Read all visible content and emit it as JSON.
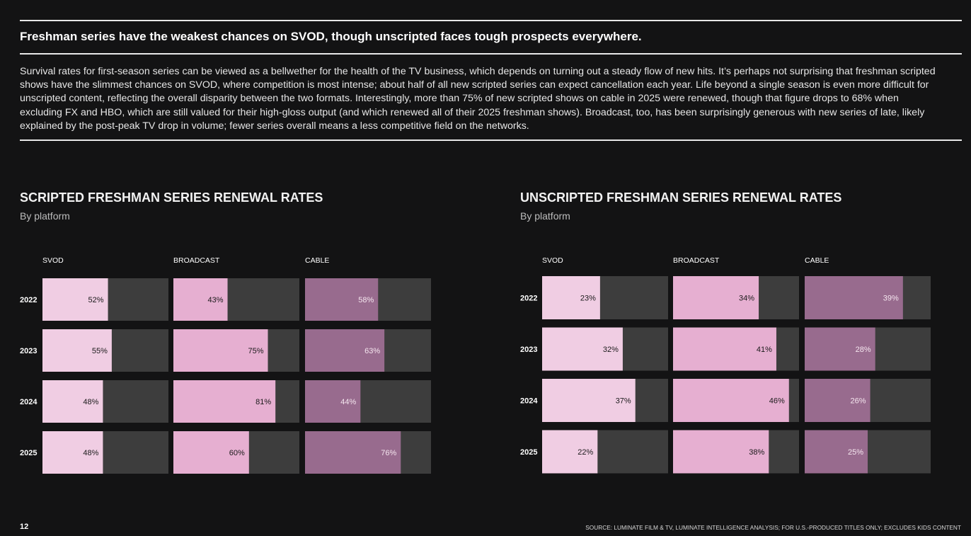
{
  "headline": "Freshman series have the weakest chances on SVOD, though unscripted faces tough prospects everywhere.",
  "intro": "Survival rates for first-season series can be viewed as a bellwether for the health of the TV business, which depends on turning out a steady flow of new hits. It’s perhaps not surprising that freshman scripted shows have the slimmest chances on SVOD, where competition is most intense; about half of all new scripted series can expect cancellation each year. Life beyond a single season is even more difficult for unscripted content, reflecting the overall disparity between the two formats. Interestingly, more than 75% of new scripted shows on cable in 2025 were renewed, though that figure drops to 68% when excluding FX and HBO, which are still valued for their high-gloss output (and which renewed all of their 2025 freshman shows). Broadcast, too, has been surprisingly generous with new series of late, likely explained by the post-peak TV drop in volume; fewer series overall means a less competitive field on the networks.",
  "page_number": "12",
  "source": "SOURCE: LUMINATE FILM & TV, LUMINATE INTELLIGENCE ANALYSIS; FOR U.S.-PRODUCED TITLES ONLY; EXCLUDES KIDS CONTENT",
  "colors": {
    "svod": "#f0cde3",
    "broadcast": "#e6afd1",
    "cable": "#986b8e",
    "remainder": "#3d3d3d",
    "label_dark": "#1a1a1a",
    "label_light": "#f5e6ef"
  },
  "chart_data": [
    {
      "type": "bar",
      "orientation": "horizontal",
      "title": "SCRIPTED FRESHMAN SERIES RENEWAL RATES",
      "subtitle": "By platform",
      "categories": [
        "2022",
        "2023",
        "2024",
        "2025"
      ],
      "xlim": [
        0,
        100
      ],
      "series": [
        {
          "name": "SVOD",
          "values": [
            52,
            55,
            48,
            48
          ],
          "labels": [
            "52%",
            "55%",
            "48%",
            "48%"
          ]
        },
        {
          "name": "BROADCAST",
          "values": [
            43,
            75,
            81,
            60
          ],
          "labels": [
            "43%",
            "75%",
            "81%",
            "60%"
          ]
        },
        {
          "name": "CABLE",
          "values": [
            58,
            63,
            44,
            76
          ],
          "labels": [
            "58%",
            "63%",
            "44%",
            "76%"
          ]
        }
      ]
    },
    {
      "type": "bar",
      "orientation": "horizontal",
      "title": "UNSCRIPTED FRESHMAN SERIES RENEWAL RATES",
      "subtitle": "By platform",
      "categories": [
        "2022",
        "2023",
        "2024",
        "2025"
      ],
      "xlim": [
        0,
        50
      ],
      "series": [
        {
          "name": "SVOD",
          "values": [
            23,
            32,
            37,
            22
          ],
          "labels": [
            "23%",
            "32%",
            "37%",
            "22%"
          ]
        },
        {
          "name": "BROADCAST",
          "values": [
            34,
            41,
            46,
            38
          ],
          "labels": [
            "34%",
            "41%",
            "46%",
            "38%"
          ]
        },
        {
          "name": "CABLE",
          "values": [
            39,
            28,
            26,
            25
          ],
          "labels": [
            "39%",
            "28%",
            "26%",
            "25%"
          ]
        }
      ]
    }
  ]
}
